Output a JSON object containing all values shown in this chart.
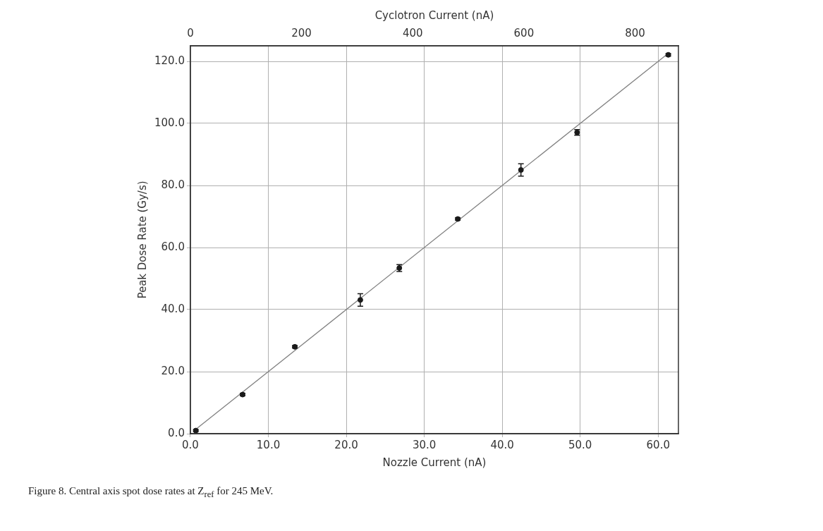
{
  "chart_data": {
    "type": "scatter",
    "xlabel": "Nozzle Current (nA)",
    "ylabel": "Peak Dose Rate (Gy/s)",
    "x2label": "Cyclotron Current (nA)",
    "xlim": [
      0,
      62.6
    ],
    "xticks": [
      {
        "value": 0,
        "label": "0.0"
      },
      {
        "value": 10,
        "label": "10.0"
      },
      {
        "value": 20,
        "label": "20.0"
      },
      {
        "value": 30,
        "label": "30.0"
      },
      {
        "value": 40,
        "label": "40.0"
      },
      {
        "value": 50,
        "label": "50.0"
      },
      {
        "value": 60,
        "label": "60.0"
      }
    ],
    "x2lim": [
      0,
      878
    ],
    "x2ticks": [
      0,
      200,
      400,
      600,
      800
    ],
    "ylim": [
      0,
      125
    ],
    "yticks": [
      {
        "value": 0,
        "label": "0.0"
      },
      {
        "value": 20,
        "label": "20.0"
      },
      {
        "value": 40,
        "label": "40.0"
      },
      {
        "value": 60,
        "label": "60.0"
      },
      {
        "value": 80,
        "label": "80.0"
      },
      {
        "value": 100,
        "label": "100.0"
      },
      {
        "value": 120,
        "label": "120.0"
      }
    ],
    "grid": true,
    "legend": false,
    "series": [
      {
        "type": "scatter",
        "color": "#1a1a1a",
        "x": [
          0.7,
          6.7,
          13.4,
          21.8,
          26.8,
          34.3,
          42.4,
          49.6,
          61.3
        ],
        "values": [
          1.0,
          12.6,
          28.0,
          43.1,
          53.4,
          69.2,
          85.0,
          97.1,
          122.1
        ],
        "errors": [
          0.3,
          0.4,
          0.4,
          2.0,
          1.1,
          0.4,
          2.0,
          0.9,
          0.4
        ],
        "marker": "circle"
      },
      {
        "type": "line",
        "color": "#808080",
        "x": [
          0.7,
          61.4
        ],
        "values": [
          1.4,
          122.8
        ],
        "line_style": "solid",
        "marker": "none"
      }
    ],
    "annotations": [
      "Figure 8. Central axis spot dose rates at Z$_{ref}$ for 245 MeV."
    ]
  }
}
